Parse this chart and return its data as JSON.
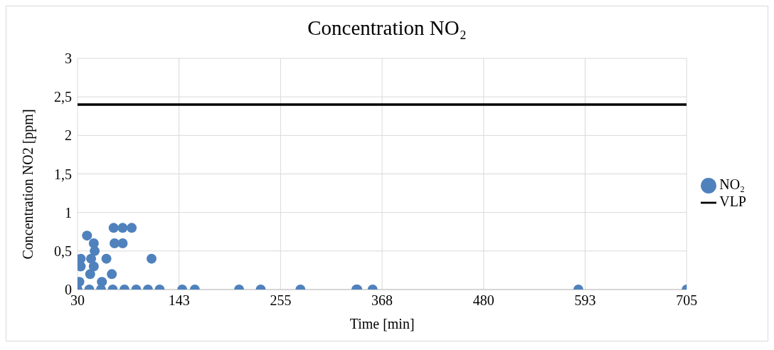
{
  "chart_data": {
    "type": "scatter",
    "title": "Concentration NO₂",
    "xlabel": "Time [min]",
    "ylabel": "Concentration  NO2 [ppm]",
    "xlim": [
      30,
      705
    ],
    "xticks": [
      30,
      {
        "value": 142.5,
        "label": "143"
      },
      255,
      {
        "value": 367.5,
        "label": "368"
      },
      480,
      {
        "value": 592.5,
        "label": "593"
      },
      705
    ],
    "ylim": [
      0,
      3
    ],
    "yticks": [
      0,
      {
        "value": 0.5,
        "label": "0,5"
      },
      1,
      {
        "value": 1.5,
        "label": "1,5"
      },
      2,
      {
        "value": 2.5,
        "label": "2,5"
      },
      3
    ],
    "grid": true,
    "legend": "right",
    "marker": "circle",
    "series": [
      {
        "name": "NO₂",
        "type": "scatter",
        "color": "#4f81bd",
        "x": [
          30,
          43,
          56,
          69,
          82,
          95,
          108,
          121,
          146,
          160,
          209,
          233,
          277,
          339,
          340,
          357,
          585,
          705,
          40.5,
          48,
          49,
          33.5,
          45,
          62,
          112,
          32,
          57,
          44,
          68,
          70,
          80,
          90,
          71,
          80,
          33.5,
          48
        ],
        "values": [
          0,
          0,
          0,
          0,
          0,
          0,
          0,
          0,
          0,
          0,
          0,
          0,
          0,
          0,
          0,
          0,
          0,
          0,
          0.7,
          0.6,
          0.5,
          0.4,
          0.4,
          0.4,
          0.4,
          0.1,
          0.1,
          0.2,
          0.2,
          0.8,
          0.8,
          0.8,
          0.6,
          0.6,
          0.3,
          0.3
        ]
      },
      {
        "name": "VLP",
        "type": "line",
        "color": "#000000",
        "marker": "none",
        "x": [
          30,
          705
        ],
        "values": [
          2.4,
          2.4
        ]
      }
    ]
  }
}
